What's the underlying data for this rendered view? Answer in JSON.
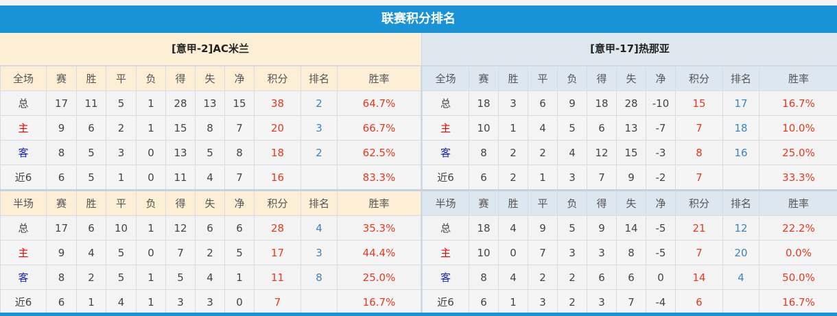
{
  "title": "联赛积分排名",
  "headers": [
    "赛",
    "胜",
    "平",
    "负",
    "得",
    "失",
    "净",
    "积分",
    "排名",
    "胜率"
  ],
  "colors": {
    "accent": "#1a93d6",
    "points": "#e8391d",
    "rank": "#3a84c4",
    "home": "#e00000",
    "away": "#1822c8"
  },
  "teams": [
    {
      "name": "[意甲-2]AC米兰",
      "full": {
        "label": "全场",
        "rows": [
          [
            "总",
            "17",
            "11",
            "5",
            "1",
            "28",
            "13",
            "15",
            "38",
            "2",
            "64.7%"
          ],
          [
            "主",
            "9",
            "6",
            "2",
            "1",
            "15",
            "8",
            "7",
            "20",
            "3",
            "66.7%"
          ],
          [
            "客",
            "8",
            "5",
            "3",
            "0",
            "13",
            "5",
            "8",
            "18",
            "2",
            "62.5%"
          ],
          [
            "近6",
            "6",
            "5",
            "1",
            "0",
            "11",
            "4",
            "7",
            "16",
            "",
            "83.3%"
          ]
        ]
      },
      "half": {
        "label": "半场",
        "rows": [
          [
            "总",
            "17",
            "6",
            "10",
            "1",
            "12",
            "6",
            "6",
            "28",
            "4",
            "35.3%"
          ],
          [
            "主",
            "9",
            "4",
            "5",
            "0",
            "7",
            "2",
            "5",
            "17",
            "3",
            "44.4%"
          ],
          [
            "客",
            "8",
            "2",
            "5",
            "1",
            "5",
            "4",
            "1",
            "11",
            "8",
            "25.0%"
          ],
          [
            "近6",
            "6",
            "1",
            "4",
            "1",
            "3",
            "3",
            "0",
            "7",
            "",
            "16.7%"
          ]
        ]
      }
    },
    {
      "name": "[意甲-17]热那亚",
      "full": {
        "label": "全场",
        "rows": [
          [
            "总",
            "18",
            "3",
            "6",
            "9",
            "18",
            "28",
            "-10",
            "15",
            "17",
            "16.7%"
          ],
          [
            "主",
            "10",
            "1",
            "4",
            "5",
            "6",
            "13",
            "-7",
            "7",
            "18",
            "10.0%"
          ],
          [
            "客",
            "8",
            "2",
            "2",
            "4",
            "12",
            "15",
            "-3",
            "8",
            "16",
            "25.0%"
          ],
          [
            "近6",
            "6",
            "2",
            "1",
            "3",
            "7",
            "9",
            "-2",
            "7",
            "",
            "33.3%"
          ]
        ]
      },
      "half": {
        "label": "半场",
        "rows": [
          [
            "总",
            "18",
            "4",
            "9",
            "5",
            "9",
            "14",
            "-5",
            "21",
            "12",
            "22.2%"
          ],
          [
            "主",
            "10",
            "0",
            "7",
            "3",
            "3",
            "8",
            "-5",
            "7",
            "20",
            "0.0%"
          ],
          [
            "客",
            "8",
            "4",
            "2",
            "2",
            "6",
            "6",
            "0",
            "14",
            "4",
            "50.0%"
          ],
          [
            "近6",
            "6",
            "1",
            "3",
            "2",
            "3",
            "7",
            "-4",
            "6",
            "",
            "16.7%"
          ]
        ]
      }
    }
  ]
}
